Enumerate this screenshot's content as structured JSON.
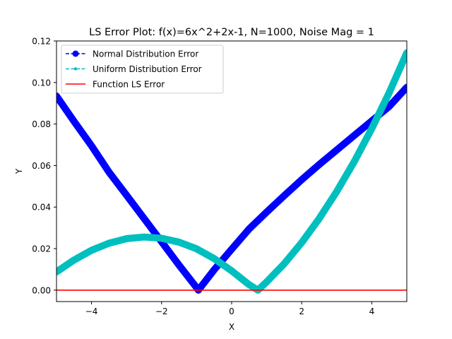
{
  "chart_data": {
    "type": "line",
    "title": "LS Error Plot: f(x)=6x^2+2x-1, N=1000, Noise Mag = 1",
    "xlabel": "X",
    "ylabel": "Y",
    "xlim": [
      -5,
      5
    ],
    "ylim": [
      -0.0055,
      0.12
    ],
    "xticks": [
      -4,
      -2,
      0,
      2,
      4
    ],
    "xtick_labels": [
      "−4",
      "−2",
      "0",
      "2",
      "4"
    ],
    "yticks": [
      0.0,
      0.02,
      0.04,
      0.06,
      0.08,
      0.1,
      0.12
    ],
    "ytick_labels": [
      "0.00",
      "0.02",
      "0.04",
      "0.06",
      "0.08",
      "0.10",
      "0.12"
    ],
    "grid": false,
    "legend_position": "top-left",
    "series": [
      {
        "name": "Normal Distribution Error",
        "color": "#0000ff",
        "style": "dashed-marker-circle",
        "x": [
          -5,
          -4.5,
          -4,
          -3.5,
          -3,
          -2.5,
          -2,
          -1.5,
          -1,
          -0.95,
          -0.5,
          0,
          0.5,
          1,
          1.5,
          2,
          2.5,
          3,
          3.5,
          4,
          4.5,
          5
        ],
        "y": [
          0.0935,
          0.0813,
          0.0695,
          0.0568,
          0.0457,
          0.0345,
          0.0233,
          0.012,
          0.0012,
          0.0,
          0.0098,
          0.0197,
          0.0295,
          0.0376,
          0.0455,
          0.0532,
          0.0605,
          0.0675,
          0.0745,
          0.0815,
          0.0885,
          0.0977
        ]
      },
      {
        "name": "Uniform Distribution Error",
        "color": "#00bfbf",
        "style": "dashed-marker-dot",
        "x": [
          -5,
          -4.5,
          -4,
          -3.5,
          -3,
          -2.5,
          -2,
          -1.5,
          -1,
          -0.5,
          0,
          0.5,
          0.75,
          1,
          1.5,
          2,
          2.5,
          3,
          3.5,
          4,
          4.5,
          5
        ],
        "y": [
          0.0088,
          0.0145,
          0.0192,
          0.0226,
          0.0248,
          0.0256,
          0.025,
          0.0231,
          0.0199,
          0.0152,
          0.0093,
          0.0026,
          0.0,
          0.004,
          0.0127,
          0.0229,
          0.0345,
          0.0475,
          0.0619,
          0.0778,
          0.0952,
          0.1143
        ]
      },
      {
        "name": "Function LS Error",
        "color": "#ff0000",
        "style": "solid",
        "x": [
          -5,
          5
        ],
        "y": [
          0,
          0
        ]
      }
    ]
  }
}
